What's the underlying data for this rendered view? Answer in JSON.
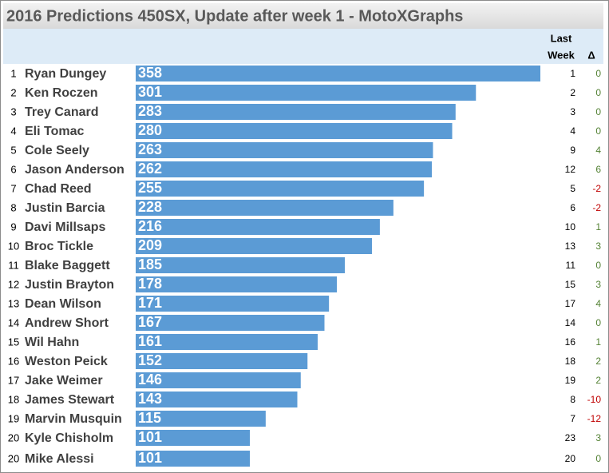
{
  "chart_data": {
    "type": "bar",
    "title": "2016 Predictions 450SX, Update after week 1 - MotoXGraphs",
    "last_week_header": [
      "Last",
      "Week"
    ],
    "delta_header": "Δ",
    "color": "#5b9bd5",
    "ranks": [
      1,
      2,
      3,
      4,
      5,
      6,
      7,
      8,
      9,
      10,
      11,
      12,
      13,
      14,
      15,
      16,
      17,
      18,
      19,
      20,
      20
    ],
    "categories": [
      "Ryan Dungey",
      "Ken Roczen",
      "Trey Canard",
      "Eli Tomac",
      "Cole Seely",
      "Jason Anderson",
      "Chad Reed",
      "Justin Barcia",
      "Davi Millsaps",
      "Broc Tickle",
      "Blake Baggett",
      "Justin Brayton",
      "Dean Wilson",
      "Andrew Short",
      "Wil Hahn",
      "Weston Peick",
      "Jake Weimer",
      "James Stewart",
      "Marvin Musquin",
      "Kyle Chisholm",
      "Mike Alessi"
    ],
    "values": [
      358,
      301,
      283,
      280,
      263,
      262,
      255,
      228,
      216,
      209,
      185,
      178,
      171,
      167,
      161,
      152,
      146,
      143,
      115,
      101,
      101
    ],
    "last_week": [
      1,
      2,
      3,
      4,
      9,
      12,
      5,
      6,
      10,
      13,
      11,
      15,
      17,
      14,
      16,
      18,
      19,
      8,
      7,
      23,
      20
    ],
    "delta": [
      0,
      0,
      0,
      0,
      4,
      6,
      -2,
      -2,
      1,
      3,
      0,
      3,
      4,
      0,
      1,
      2,
      2,
      -10,
      -12,
      3,
      0
    ]
  }
}
